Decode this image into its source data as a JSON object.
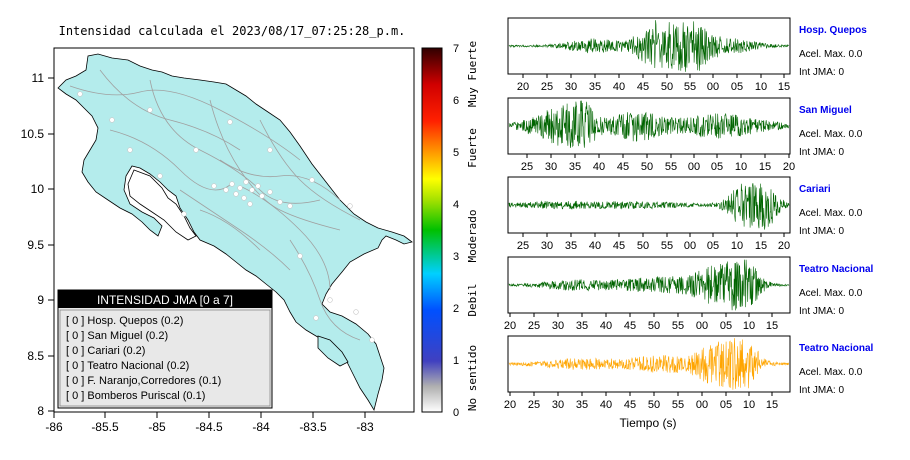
{
  "map": {
    "title": "Intensidad calculada el 2023/08/17_07:25:28_p.m.",
    "x_ticks": [
      "-86",
      "-85.5",
      "-85",
      "-84.5",
      "-84",
      "-83.5",
      "-83"
    ],
    "y_ticks": [
      "11",
      "10.5",
      "10",
      "9.5",
      "9",
      "8.5",
      "8"
    ],
    "land_color": "#b4ecec",
    "legend": {
      "title": "INTENSIDAD JMA [0 a 7]",
      "items": [
        "[ 0 ]  Hosp. Quepos (0.2)",
        "[ 0 ]  San Miguel (0.2)",
        "[ 0 ]  Cariari (0.2)",
        "[ 0 ]  Teatro Nacional (0.2)",
        "[ 0 ]  F. Naranjo,Corredores (0.1)",
        "[ 0 ]  Bomberos Puriscal (0.1)"
      ]
    }
  },
  "colorbar": {
    "ticks": [
      "7",
      "6",
      "5",
      "4",
      "3",
      "2",
      "1",
      "0"
    ],
    "labels": [
      "Muy Fuerte",
      "Fuerte",
      "Moderado",
      "Debil",
      "No sentido"
    ]
  },
  "stations": [
    {
      "name": "Hosp. Quepos",
      "acel": "Acel. Max. 0.0",
      "jma": "Int JMA: 0",
      "ticks": [
        "20",
        "25",
        "30",
        "35",
        "40",
        "45",
        "50",
        "55",
        "00",
        "05",
        "10",
        "15"
      ],
      "color": "#006400"
    },
    {
      "name": "San Miguel",
      "acel": "Acel. Max. 0.0",
      "jma": "Int JMA: 0",
      "ticks": [
        "25",
        "30",
        "35",
        "40",
        "45",
        "50",
        "55",
        "00",
        "05",
        "10",
        "15",
        "20"
      ],
      "color": "#006400"
    },
    {
      "name": "Cariari",
      "acel": "Acel. Max. 0.0",
      "jma": "Int JMA: 0",
      "ticks": [
        "25",
        "30",
        "35",
        "40",
        "45",
        "50",
        "55",
        "00",
        "05",
        "10",
        "15",
        "20"
      ],
      "color": "#006400"
    },
    {
      "name": "Teatro Nacional",
      "acel": "Acel. Max. 0.0",
      "jma": "Int JMA: 0",
      "ticks": [
        "20",
        "25",
        "30",
        "35",
        "40",
        "45",
        "50",
        "55",
        "00",
        "05",
        "10",
        "15"
      ],
      "color": "#006400"
    },
    {
      "name": "Teatro Nacional",
      "acel": "Acel. Max. 0.0",
      "jma": "Int JMA: 0",
      "ticks": [
        "20",
        "25",
        "30",
        "35",
        "40",
        "45",
        "50",
        "55",
        "00",
        "05",
        "10",
        "15"
      ],
      "color": "#ffa500"
    }
  ],
  "waveform_xlabel": "Tiempo (s)",
  "station_name_color": "#0000ee",
  "chart_data": [
    {
      "type": "other",
      "title": "Intensidad calculada el 2023/08/17_07:25:28_p.m.",
      "xlim": [
        -86,
        -82.6
      ],
      "ylim": [
        8,
        11.25
      ]
    },
    {
      "type": "line",
      "xlabel": "Tiempo (s)",
      "series": [
        {
          "name": "Hosp. Quepos",
          "values": []
        },
        {
          "name": "San Miguel",
          "values": []
        },
        {
          "name": "Cariari",
          "values": []
        },
        {
          "name": "Teatro Nacional",
          "values": []
        },
        {
          "name": "Teatro Nacional",
          "values": []
        }
      ]
    }
  ]
}
